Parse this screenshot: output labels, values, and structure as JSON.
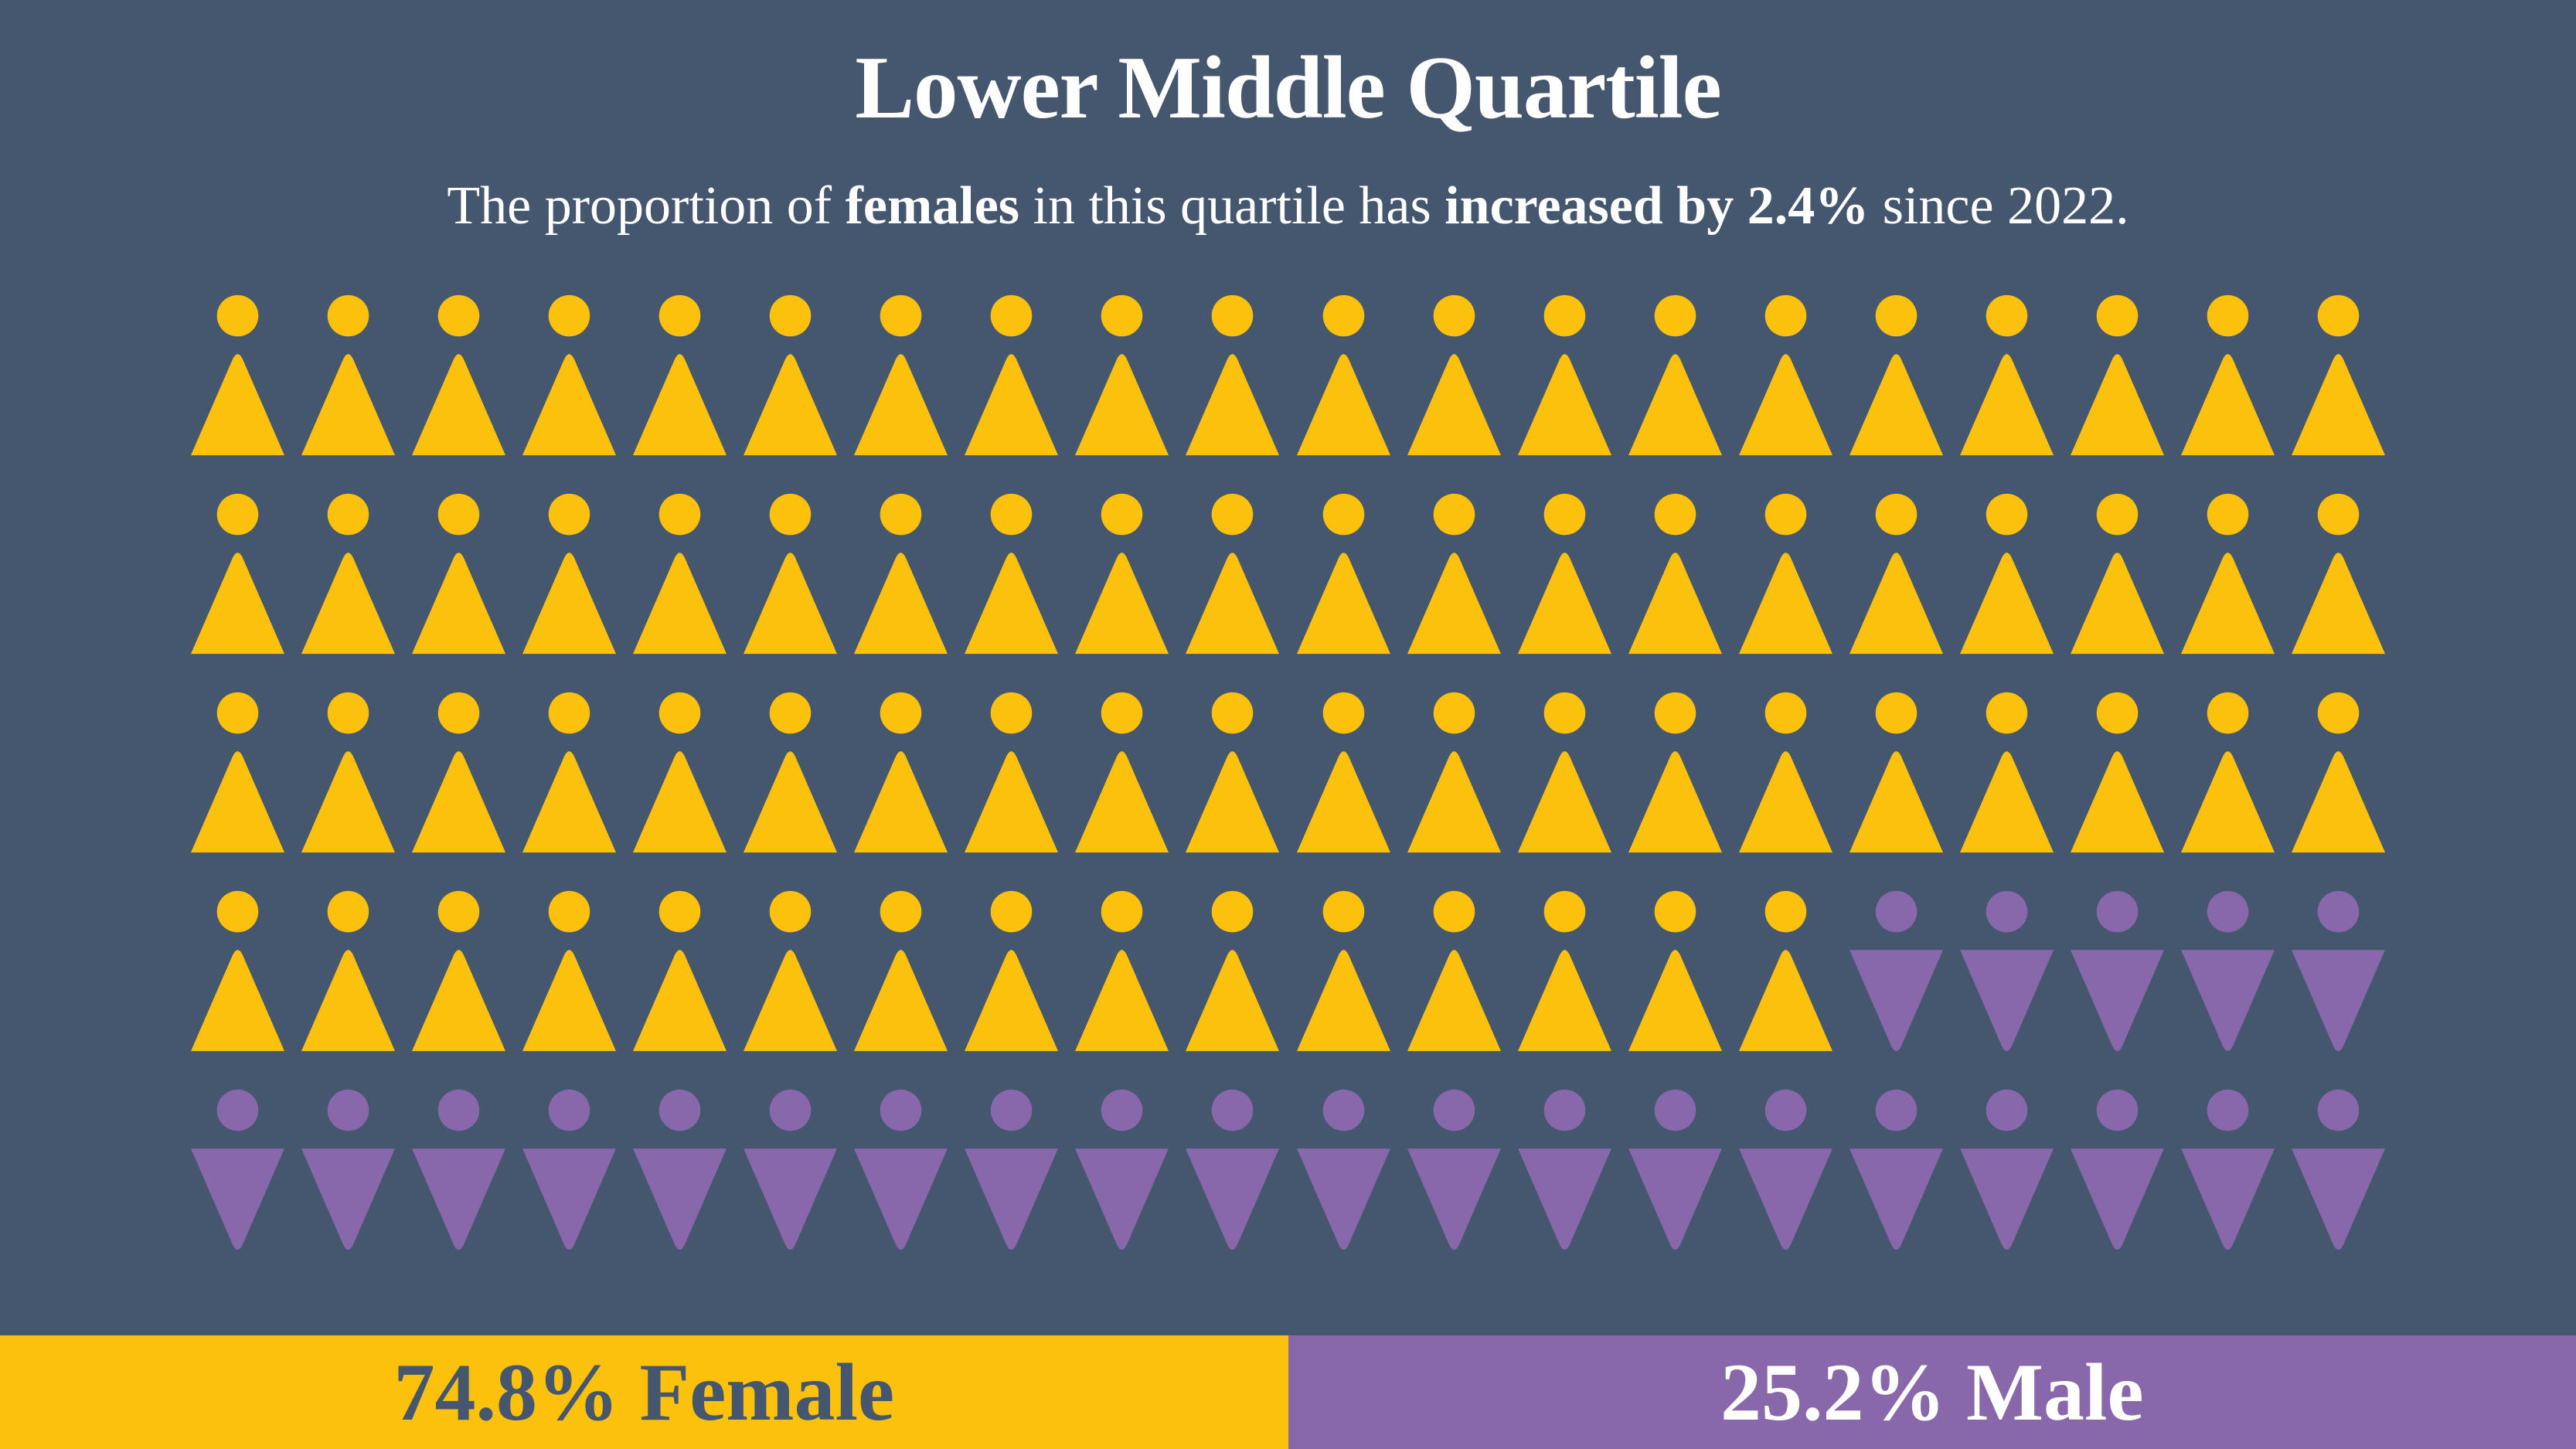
{
  "header": {
    "title": "Lower Middle Quartile",
    "subtitle_parts": [
      {
        "text": "The proportion of ",
        "bold": false
      },
      {
        "text": "females",
        "bold": true
      },
      {
        "text": " in this quartile has ",
        "bold": false
      },
      {
        "text": "increased by 2.4%",
        "bold": true
      },
      {
        "text": " since 2022.",
        "bold": false
      }
    ]
  },
  "chart_data": {
    "type": "pictograph",
    "title": "Lower Middle Quartile",
    "annotation": "The proportion of females in this quartile has increased by 2.4% since 2022.",
    "grid": {
      "rows": 5,
      "columns": 20,
      "total_icons": 100,
      "percent_per_icon": 1
    },
    "series": [
      {
        "name": "Female",
        "percent": 74.8,
        "icons": 75,
        "color": "#FCC10D",
        "icon": "female-person"
      },
      {
        "name": "Male",
        "percent": 25.2,
        "icons": 25,
        "color": "#8967AB",
        "icon": "male-person"
      }
    ],
    "rows": [
      {
        "female": 20,
        "male": 0
      },
      {
        "female": 20,
        "male": 0
      },
      {
        "female": 20,
        "male": 0
      },
      {
        "female": 15,
        "male": 5
      },
      {
        "female": 0,
        "male": 20
      }
    ],
    "legend_position": "bottom"
  },
  "footer": {
    "female_label": "74.8% Female",
    "male_label": "25.2% Male"
  },
  "colors": {
    "background": "#45566F",
    "female": "#FCC10D",
    "male": "#8967AB",
    "female_bar_text": "#45566F",
    "male_bar_text": "#FFFFFF"
  }
}
